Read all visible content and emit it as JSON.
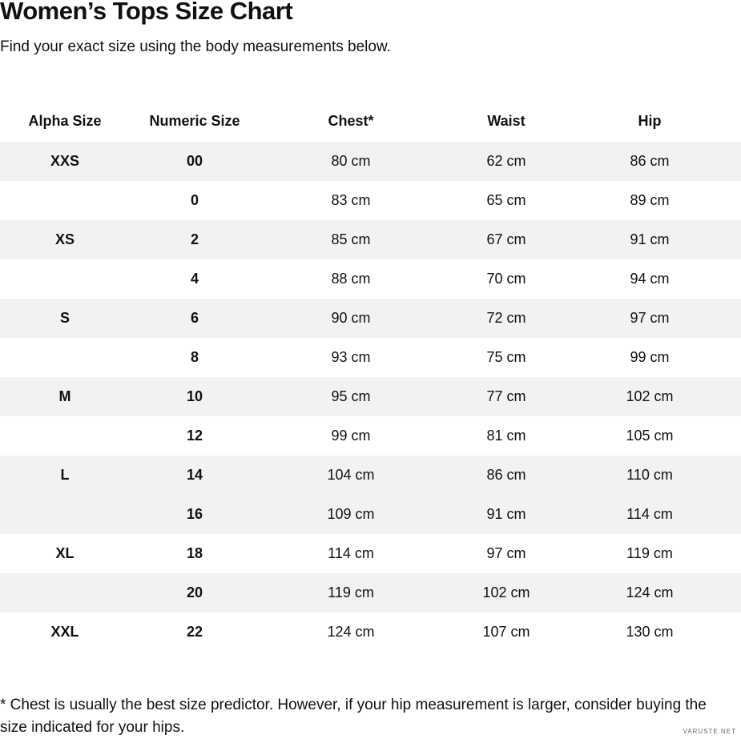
{
  "header": {
    "title": "Women’s Tops Size Chart",
    "subtitle": "Find your exact size using the body measurements below."
  },
  "table": {
    "columns": [
      "Alpha Size",
      "Numeric Size",
      "Chest*",
      "Waist",
      "Hip"
    ],
    "rows": [
      [
        "XXS",
        "00",
        "80 cm",
        "62 cm",
        "86 cm"
      ],
      [
        null,
        "0",
        "83 cm",
        "65 cm",
        "89 cm"
      ],
      [
        "XS",
        "2",
        "85 cm",
        "67 cm",
        "91 cm"
      ],
      [
        null,
        "4",
        "88 cm",
        "70 cm",
        "94 cm"
      ],
      [
        "S",
        "6",
        "90 cm",
        "72 cm",
        "97 cm"
      ],
      [
        null,
        "8",
        "93 cm",
        "75 cm",
        "99 cm"
      ],
      [
        "M",
        "10",
        "95 cm",
        "77 cm",
        "102 cm"
      ],
      [
        null,
        "12",
        "99 cm",
        "81 cm",
        "105 cm"
      ],
      [
        "L",
        "14",
        "104 cm",
        "86 cm",
        "110 cm"
      ],
      [
        null,
        "16",
        "109 cm",
        "91 cm",
        "114 cm"
      ],
      [
        "XL",
        "18",
        "114 cm",
        "97 cm",
        "119 cm"
      ],
      [
        null,
        "20",
        "119 cm",
        "102 cm",
        "124 cm"
      ],
      [
        "XXL",
        "22",
        "124 cm",
        "107 cm",
        "130 cm"
      ]
    ]
  },
  "footnote": "* Chest is usually the best size predictor. However, if your hip measurement is larger, consider buying the size indicated for your hips.",
  "watermark": "VARUSTE.NET"
}
